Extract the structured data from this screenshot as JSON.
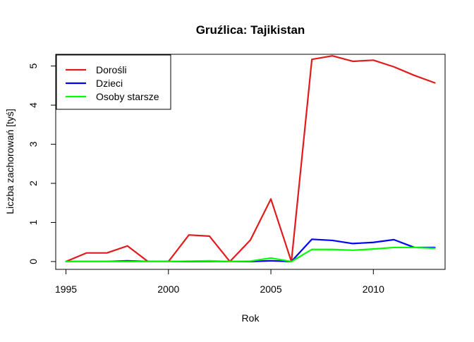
{
  "chart_data": {
    "type": "line",
    "title": "Gruźlica: Tajikistan",
    "xlabel": "Rok",
    "ylabel": "Liczba zachorowań [tyś]",
    "xlim": [
      1994.5,
      2013.5
    ],
    "ylim": [
      -0.2,
      5.3
    ],
    "xticks": [
      1995,
      2000,
      2005,
      2010
    ],
    "yticks": [
      0,
      1,
      2,
      3,
      4,
      5
    ],
    "grid": false,
    "legend_position": "top-left",
    "x": [
      1995,
      1996,
      1997,
      1998,
      1999,
      2000,
      2001,
      2002,
      2003,
      2004,
      2005,
      2006,
      2007,
      2008,
      2009,
      2010,
      2011,
      2012,
      2013
    ],
    "series": [
      {
        "name": "Dorośli",
        "color": "#e31a1c",
        "values": [
          0,
          0.22,
          0.22,
          0.4,
          0,
          0,
          0.68,
          0.65,
          0,
          0.55,
          1.6,
          0,
          5.17,
          5.26,
          5.12,
          5.15,
          4.98,
          4.76,
          4.57
        ]
      },
      {
        "name": "Dzieci",
        "color": "#0000ff",
        "values": [
          0,
          0,
          0,
          0.02,
          0,
          0,
          0,
          0.01,
          0,
          0,
          0.02,
          0,
          0.57,
          0.54,
          0.46,
          0.49,
          0.56,
          0.36,
          0.36
        ]
      },
      {
        "name": "Osoby starsze",
        "color": "#00ff00",
        "values": [
          0,
          0,
          0,
          0,
          0,
          0,
          0.01,
          0.02,
          0,
          0.01,
          0.09,
          0,
          0.31,
          0.31,
          0.29,
          0.32,
          0.36,
          0.36,
          0.34
        ]
      }
    ]
  }
}
